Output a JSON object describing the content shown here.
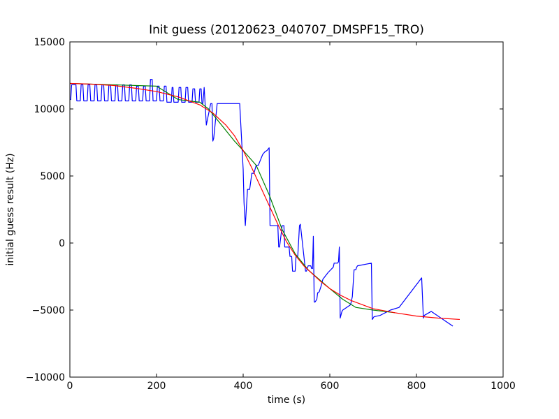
{
  "chart_data": {
    "type": "line",
    "title": "Init guess (20120623_040707_DMSPF15_TRO)",
    "xlabel": "time (s)",
    "ylabel": "initial guess result (Hz)",
    "xlim": [
      0,
      1000
    ],
    "ylim": [
      -10000,
      15000
    ],
    "xticks": [
      0,
      200,
      400,
      600,
      800,
      1000
    ],
    "yticks": [
      -10000,
      -5000,
      0,
      5000,
      10000,
      15000
    ],
    "xtick_labels": [
      "0",
      "200",
      "400",
      "600",
      "800",
      "1000"
    ],
    "ytick_labels": [
      "−10000",
      "−5000",
      "0",
      "5000",
      "10000",
      "15000"
    ],
    "grid": false,
    "legend": "none",
    "series": [
      {
        "color": "#0000ff",
        "x": [
          0,
          2,
          4,
          14,
          16,
          24,
          26,
          30,
          32,
          40,
          42,
          46,
          48,
          56,
          58,
          62,
          64,
          72,
          74,
          78,
          80,
          88,
          90,
          94,
          96,
          104,
          106,
          110,
          112,
          120,
          122,
          126,
          128,
          136,
          138,
          142,
          144,
          152,
          154,
          158,
          160,
          168,
          170,
          174,
          176,
          184,
          186,
          190,
          192,
          200,
          202,
          206,
          208,
          216,
          218,
          222,
          224,
          234,
          236,
          238,
          240,
          250,
          252,
          256,
          258,
          266,
          268,
          272,
          274,
          282,
          284,
          288,
          290,
          298,
          300,
          303,
          305,
          307,
          310,
          315,
          325,
          328,
          330,
          332,
          340,
          350,
          360,
          375,
          378,
          392,
          400,
          402,
          405,
          410,
          415,
          420,
          425,
          430,
          435,
          440,
          445,
          450,
          455,
          460,
          462,
          464,
          466,
          480,
          482,
          484,
          490,
          492,
          494,
          496,
          502,
          506,
          508,
          512,
          514,
          520,
          522,
          524,
          526,
          530,
          532,
          544,
          546,
          550,
          552,
          556,
          558,
          560,
          562,
          564,
          566,
          570,
          572,
          574,
          576,
          580,
          584,
          596,
          608,
          610,
          618,
          620,
          622,
          624,
          628,
          630,
          648,
          652,
          656,
          660,
          662,
          664,
          696,
          698,
          700,
          702,
          716,
          722,
          728,
          740,
          760,
          812,
          816,
          818,
          834,
          884
        ],
        "y": [
          10700,
          10700,
          11800,
          11800,
          10600,
          10600,
          11800,
          11800,
          10600,
          10600,
          11800,
          11800,
          10600,
          10600,
          11800,
          11800,
          10600,
          10600,
          11800,
          11800,
          10600,
          10600,
          11800,
          11800,
          10600,
          10600,
          11800,
          11800,
          10600,
          10600,
          11800,
          11800,
          10600,
          10600,
          11800,
          11800,
          10600,
          10600,
          11700,
          11700,
          10600,
          10600,
          11700,
          11700,
          10600,
          10600,
          12200,
          12200,
          10600,
          10600,
          11700,
          11700,
          10600,
          10600,
          11700,
          11700,
          10500,
          10500,
          11600,
          11600,
          10500,
          10500,
          11600,
          11600,
          10500,
          10500,
          11600,
          11600,
          10500,
          10500,
          11500,
          11500,
          10500,
          10500,
          11500,
          11500,
          10400,
          10400,
          11600,
          8800,
          10400,
          10400,
          7600,
          7800,
          10400,
          10400,
          10400,
          10400,
          10400,
          10400,
          5500,
          3000,
          1300,
          4000,
          4000,
          5200,
          5200,
          5800,
          5800,
          6200,
          6600,
          6800,
          6900,
          7100,
          1300,
          1300,
          1300,
          1300,
          -300,
          -300,
          1300,
          1300,
          1300,
          -300,
          -300,
          -300,
          -1000,
          -1000,
          -2100,
          -2100,
          -1000,
          -1000,
          -1000,
          1300,
          1400,
          -2100,
          -2100,
          -1700,
          -1700,
          -1700,
          -1900,
          -1900,
          500,
          -4400,
          -4400,
          -4200,
          -3700,
          -3700,
          -3600,
          -3200,
          -2700,
          -2200,
          -1800,
          -1500,
          -1500,
          -1400,
          -300,
          -5600,
          -5100,
          -5000,
          -4600,
          -4000,
          -2000,
          -2000,
          -1800,
          -1700,
          -1500,
          -5700,
          -5600,
          -5500,
          -5400,
          -5300,
          -5200,
          -5000,
          -4800,
          -2600,
          -5600,
          -5400,
          -5100,
          -6200
        ]
      },
      {
        "color": "#008000",
        "x": [
          0,
          100,
          200,
          250,
          300,
          320,
          350,
          380,
          400,
          430,
          460,
          490,
          520,
          550,
          600,
          630,
          660,
          700,
          750
        ],
        "y": [
          11900,
          11800,
          11700,
          10700,
          10500,
          10000,
          8800,
          7600,
          6900,
          5800,
          3600,
          1000,
          -800,
          -2000,
          -3400,
          -4200,
          -4800,
          -5000,
          -5200
        ]
      },
      {
        "color": "#ff0000",
        "x": [
          0,
          50,
          100,
          150,
          200,
          250,
          300,
          330,
          360,
          380,
          400,
          420,
          440,
          460,
          480,
          500,
          520,
          540,
          560,
          580,
          600,
          625,
          650,
          675,
          700,
          750,
          800,
          850,
          900
        ],
        "y": [
          11900,
          11850,
          11750,
          11550,
          11300,
          10900,
          10300,
          9700,
          8800,
          8000,
          6900,
          5600,
          4200,
          2800,
          1400,
          100,
          -900,
          -1700,
          -2300,
          -2900,
          -3400,
          -3900,
          -4300,
          -4600,
          -4900,
          -5200,
          -5450,
          -5600,
          -5700
        ]
      }
    ]
  }
}
